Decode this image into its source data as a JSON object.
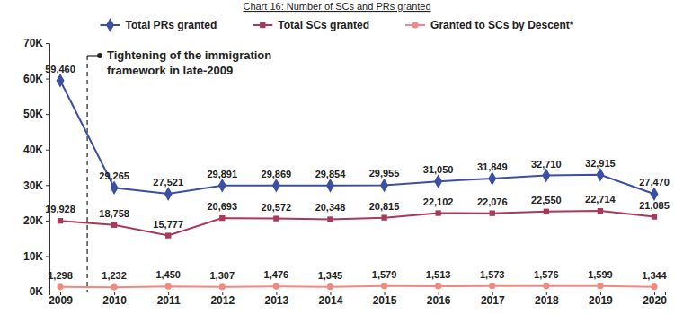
{
  "chart_data": {
    "type": "line",
    "title": "Chart 16: Number of SCs and PRs granted",
    "annotation_lines": [
      "Tightening of the immigration",
      "framework in late-2009"
    ],
    "categories": [
      "2009",
      "2010",
      "2011",
      "2012",
      "2013",
      "2014",
      "2015",
      "2016",
      "2017",
      "2018",
      "2019",
      "2020"
    ],
    "series": [
      {
        "name": "Total PRs granted",
        "color": "#3b4fa3",
        "marker": "diamond",
        "values": [
          59460,
          29265,
          27521,
          29891,
          29869,
          29854,
          29955,
          31050,
          31849,
          32710,
          32915,
          27470
        ],
        "value_labels": [
          "59,460",
          "29,265",
          "27,521",
          "29,891",
          "29,869",
          "29,854",
          "29,955",
          "31,050",
          "31,849",
          "32,710",
          "32,915",
          "27,470"
        ]
      },
      {
        "name": "Total SCs granted",
        "color": "#a8395b",
        "marker": "square",
        "values": [
          19928,
          18758,
          15777,
          20693,
          20572,
          20348,
          20815,
          22102,
          22076,
          22550,
          22714,
          21085
        ],
        "value_labels": [
          "19,928",
          "18,758",
          "15,777",
          "20,693",
          "20,572",
          "20,348",
          "20,815",
          "22,102",
          "22,076",
          "22,550",
          "22,714",
          "21,085"
        ]
      },
      {
        "name": "Granted to SCs by Descent*",
        "color": "#f08a80",
        "marker": "circle",
        "values": [
          1298,
          1232,
          1450,
          1307,
          1476,
          1345,
          1579,
          1513,
          1573,
          1576,
          1599,
          1344
        ],
        "value_labels": [
          "1,298",
          "1,232",
          "1,450",
          "1,307",
          "1,476",
          "1,345",
          "1,579",
          "1,513",
          "1,573",
          "1,576",
          "1,599",
          "1,344"
        ]
      }
    ],
    "ylim": [
      0,
      70000
    ],
    "yticks": [
      {
        "value": 0,
        "label": "0K"
      },
      {
        "value": 10000,
        "label": "10K"
      },
      {
        "value": 20000,
        "label": "20K"
      },
      {
        "value": 30000,
        "label": "30K"
      },
      {
        "value": 40000,
        "label": "40K"
      },
      {
        "value": 50000,
        "label": "50K"
      },
      {
        "value": 60000,
        "label": "60K"
      },
      {
        "value": 70000,
        "label": "70K"
      }
    ],
    "grid": false,
    "legend": "top",
    "data_labels": true
  }
}
